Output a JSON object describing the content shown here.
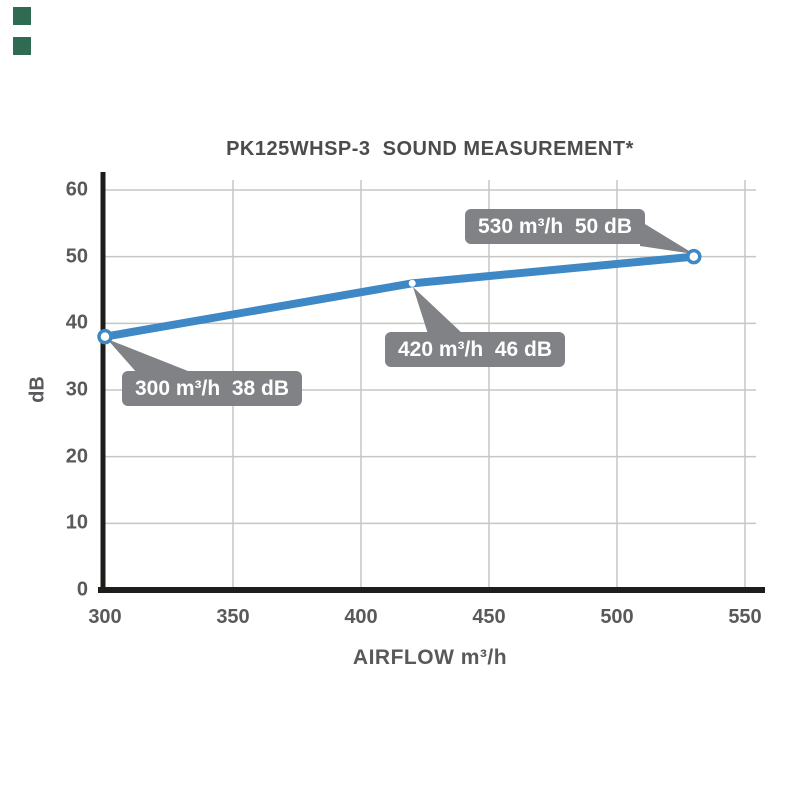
{
  "decor": {
    "squares": [
      {
        "name": "green-square-top",
        "color": "#2e6b52"
      },
      {
        "name": "green-square-bottom",
        "color": "#2e6b52"
      }
    ]
  },
  "chart_data": {
    "type": "line",
    "title": "PK125WHSP-3  SOUND MEASUREMENT*",
    "xlabel": "AIRFLOW m³/h",
    "ylabel": "dB",
    "xlim": [
      300,
      550
    ],
    "ylim": [
      0,
      60
    ],
    "xticks": [
      300,
      350,
      400,
      450,
      500,
      550
    ],
    "yticks": [
      0,
      10,
      20,
      30,
      40,
      50,
      60
    ],
    "grid": true,
    "legend": "none",
    "points": [
      {
        "x": 300,
        "y": 38,
        "marker": "ring"
      },
      {
        "x": 420,
        "y": 46,
        "marker": "dot"
      },
      {
        "x": 530,
        "y": 50,
        "marker": "ring"
      }
    ],
    "annotations": [
      {
        "label": "300 m³/h  38 dB",
        "x": 300,
        "y": 38,
        "side": "below-right"
      },
      {
        "label": "420 m³/h  46 dB",
        "x": 420,
        "y": 46,
        "side": "below"
      },
      {
        "label": "530 m³/h  50 dB",
        "x": 530,
        "y": 50,
        "side": "above-left"
      }
    ],
    "colors": {
      "line": "#3e88c5",
      "marker_fill": "#ffffff",
      "axis": "#1d1d1b",
      "grid": "#c6c6c5",
      "callout_bg": "#808285",
      "callout_text": "#ffffff",
      "label_text": "#58595b",
      "title_text": "#4c4c4e"
    }
  }
}
